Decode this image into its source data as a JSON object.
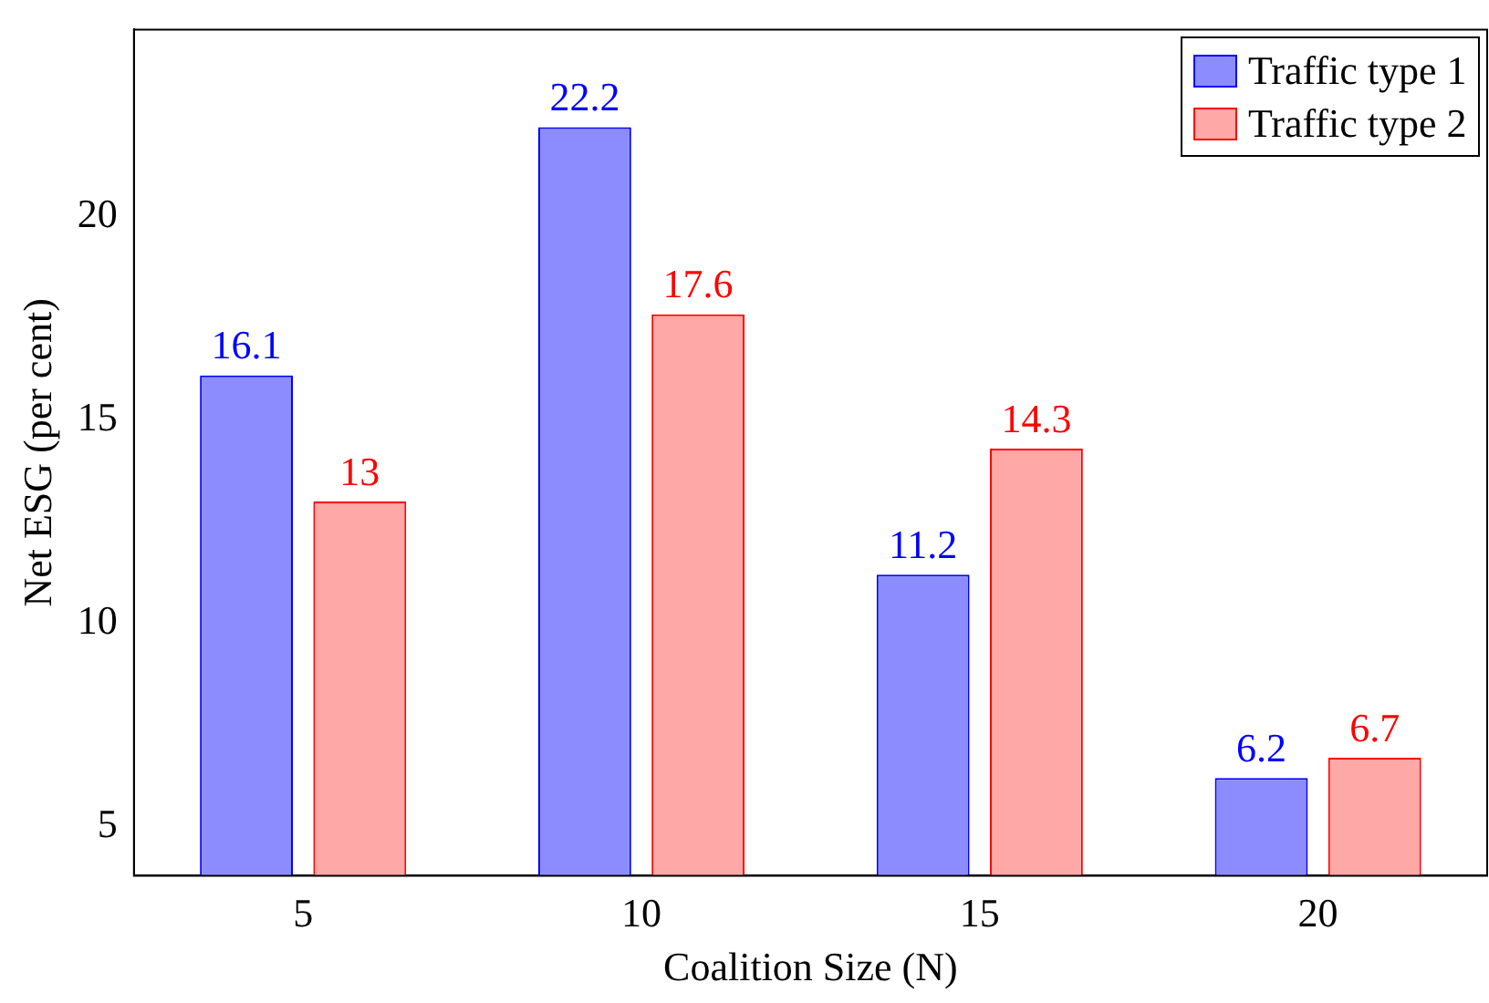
{
  "chart_data": {
    "type": "bar",
    "xlabel": "Coalition Size (N)",
    "ylabel": "Net ESG (per cent)",
    "categories": [
      "5",
      "10",
      "15",
      "20"
    ],
    "series": [
      {
        "name": "Traffic type 1",
        "color": "#8c8cff",
        "values": [
          16.1,
          22.2,
          11.2,
          6.2
        ]
      },
      {
        "name": "Traffic type 2",
        "color": "#ffa8a8",
        "values": [
          13,
          17.6,
          14.3,
          6.7
        ]
      }
    ],
    "ylim": [
      3.8,
      24.6
    ],
    "yticks": [
      5,
      10,
      15,
      20
    ],
    "grid": false,
    "legend": "top right",
    "data_labels": true
  }
}
